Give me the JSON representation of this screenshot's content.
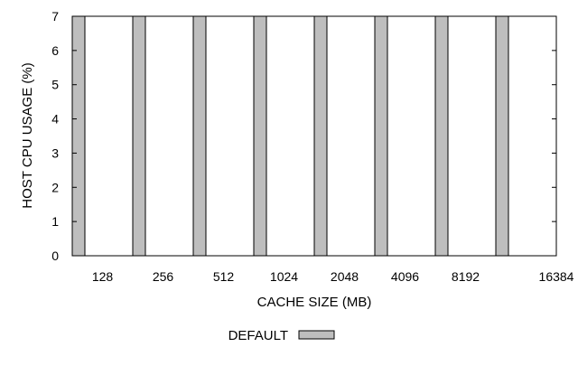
{
  "chart_data": {
    "type": "bar",
    "title": "",
    "xlabel": "CACHE SIZE (MB)",
    "ylabel": "HOST CPU USAGE (%)",
    "ylim": [
      0,
      7
    ],
    "yticks": [
      "0",
      "1",
      "2",
      "3",
      "4",
      "5",
      "6",
      "7"
    ],
    "categories": [
      "128",
      "256",
      "512",
      "1024",
      "2048",
      "4096",
      "8192",
      "16384"
    ],
    "series": [
      {
        "name": "DEFAULT",
        "values": [
          7,
          7,
          7,
          7,
          7,
          7,
          7,
          7
        ]
      }
    ],
    "grid": false,
    "legend_position": "bottom-center",
    "colors": {
      "bar_fill": "#bebebe",
      "bar_stroke": "#000000"
    }
  }
}
